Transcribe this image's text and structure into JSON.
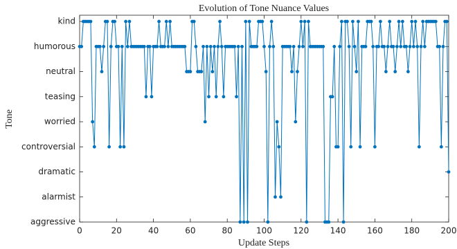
{
  "chart_data": {
    "type": "line",
    "title": "Evolution of Tone Nuance Values",
    "xlabel": "Update Steps",
    "ylabel": "Tone",
    "x": [
      0,
      1,
      2,
      3,
      4,
      5,
      6,
      7,
      8,
      9,
      10,
      11,
      12,
      13,
      14,
      15,
      16,
      17,
      18,
      19,
      20,
      21,
      22,
      23,
      24,
      25,
      26,
      27,
      28,
      29,
      30,
      31,
      32,
      33,
      34,
      35,
      36,
      37,
      38,
      39,
      40,
      41,
      42,
      43,
      44,
      45,
      46,
      47,
      48,
      49,
      50,
      51,
      52,
      53,
      54,
      55,
      56,
      57,
      58,
      59,
      60,
      61,
      62,
      63,
      64,
      65,
      66,
      67,
      68,
      69,
      70,
      71,
      72,
      73,
      74,
      75,
      76,
      77,
      78,
      79,
      80,
      81,
      82,
      83,
      84,
      85,
      86,
      87,
      88,
      89,
      90,
      91,
      92,
      93,
      94,
      95,
      96,
      97,
      98,
      99,
      100,
      101,
      102,
      103,
      104,
      105,
      106,
      107,
      108,
      109,
      110,
      111,
      112,
      113,
      114,
      115,
      116,
      117,
      118,
      119,
      120,
      121,
      122,
      123,
      124,
      125,
      126,
      127,
      128,
      129,
      130,
      131,
      132,
      133,
      134,
      135,
      136,
      137,
      138,
      139,
      140,
      141,
      142,
      143,
      144,
      145,
      146,
      147,
      148,
      149,
      150,
      151,
      152,
      153,
      154,
      155,
      156,
      157,
      158,
      159,
      160,
      161,
      162,
      163,
      164,
      165,
      166,
      167,
      168,
      169,
      170,
      171,
      172,
      173,
      174,
      175,
      176,
      177,
      178,
      179,
      180,
      181,
      182,
      183,
      184,
      185,
      186,
      187,
      188,
      189,
      190,
      191,
      192,
      193,
      194,
      195,
      196,
      197,
      198,
      199,
      200
    ],
    "series": [
      {
        "name": "Tone",
        "color": "#0072bd",
        "values": [
          7,
          7,
          8,
          8,
          8,
          8,
          8,
          4,
          3,
          7,
          7,
          7,
          6,
          7,
          8,
          8,
          3,
          7,
          8,
          8,
          7,
          7,
          3,
          7,
          3,
          8,
          7,
          8,
          7,
          7,
          7,
          7,
          7,
          7,
          7,
          7,
          5,
          7,
          7,
          5,
          7,
          7,
          7,
          8,
          7,
          7,
          7,
          8,
          7,
          8,
          7,
          7,
          7,
          7,
          7,
          7,
          7,
          7,
          6,
          6,
          6,
          8,
          8,
          7,
          6,
          6,
          6,
          7,
          4,
          7,
          5,
          7,
          6,
          7,
          5,
          7,
          8,
          7,
          5,
          7,
          7,
          7,
          7,
          7,
          7,
          5,
          7,
          0,
          7,
          0,
          8,
          0,
          8,
          7,
          7,
          7,
          7,
          8,
          8,
          8,
          7,
          6,
          0,
          7,
          8,
          7,
          1,
          4,
          3,
          1,
          7,
          7,
          7,
          7,
          7,
          6,
          7,
          4,
          6,
          7,
          8,
          7,
          8,
          0,
          8,
          7,
          7,
          7,
          7,
          7,
          7,
          7,
          7,
          0,
          0,
          0,
          5,
          5,
          7,
          3,
          3,
          7,
          8,
          0,
          8,
          8,
          7,
          3,
          8,
          7,
          6,
          8,
          3,
          7,
          7,
          7,
          8,
          8,
          8,
          7,
          3,
          7,
          7,
          8,
          7,
          7,
          6,
          7,
          8,
          7,
          7,
          6,
          7,
          8,
          7,
          8,
          7,
          7,
          6,
          7,
          8,
          7,
          8,
          7,
          3,
          7,
          8,
          7,
          8,
          8,
          8,
          8,
          8,
          8,
          7,
          7,
          3,
          7,
          8,
          8,
          2
        ]
      }
    ],
    "xlim": [
      0,
      200
    ],
    "xticks": [
      0,
      20,
      40,
      60,
      80,
      100,
      120,
      140,
      160,
      180,
      200
    ],
    "ylim": [
      0,
      8.25
    ],
    "yticks": [
      {
        "value": 0,
        "label": "aggressive"
      },
      {
        "value": 1,
        "label": "alarmist"
      },
      {
        "value": 2,
        "label": "dramatic"
      },
      {
        "value": 3,
        "label": "controversial"
      },
      {
        "value": 4,
        "label": "worried"
      },
      {
        "value": 5,
        "label": "teasing"
      },
      {
        "value": 6,
        "label": "neutral"
      },
      {
        "value": 7,
        "label": "humorous"
      },
      {
        "value": 8,
        "label": "kind"
      }
    ],
    "grid": false
  }
}
